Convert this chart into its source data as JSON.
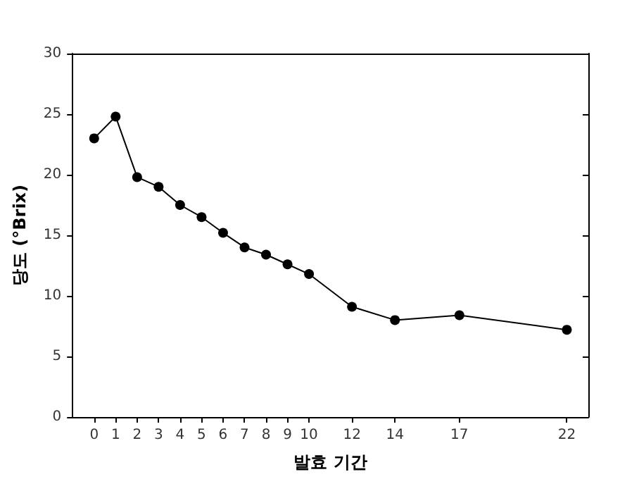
{
  "chart_data": {
    "type": "line",
    "xlabel": "발효 기간",
    "ylabel": "당도 (°Brix)",
    "x": [
      0,
      1,
      2,
      3,
      4,
      5,
      6,
      7,
      8,
      9,
      10,
      12,
      14,
      17,
      22
    ],
    "series": [
      {
        "color": "#000000",
        "values": [
          23.0,
          24.8,
          19.8,
          19.0,
          17.5,
          16.5,
          15.2,
          14.0,
          13.4,
          12.6,
          11.8,
          9.1,
          8.0,
          8.4,
          7.2
        ]
      }
    ],
    "xlim": [
      -1,
      23
    ],
    "xticks": [
      0,
      1,
      2,
      3,
      4,
      5,
      6,
      7,
      8,
      9,
      10,
      12,
      14,
      17,
      22
    ],
    "ylim": [
      0,
      30
    ],
    "yticks": [
      0,
      5,
      10,
      15,
      20,
      25,
      30
    ],
    "grid": false,
    "marker": "circle",
    "line_style": "solid"
  }
}
